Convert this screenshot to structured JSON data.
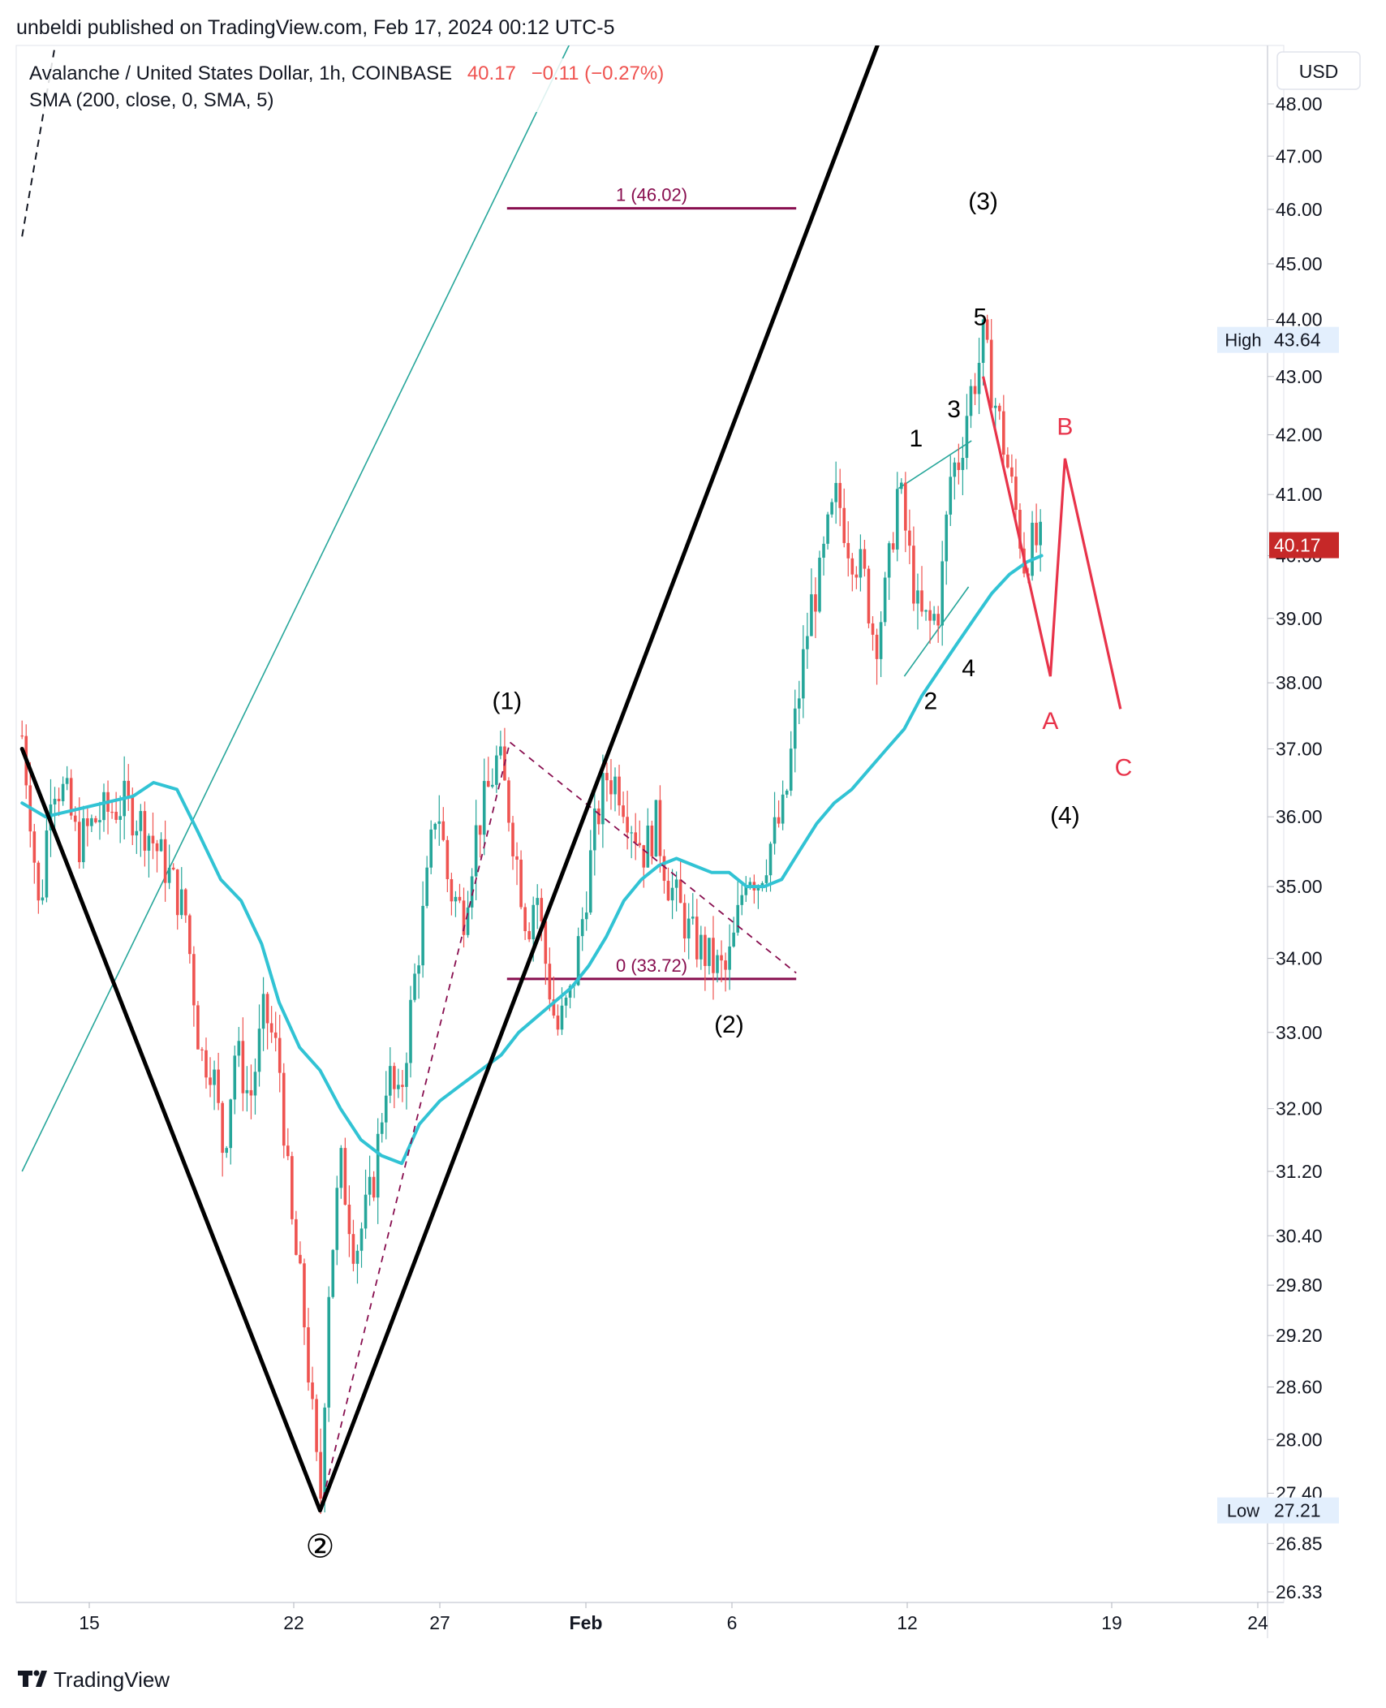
{
  "header": {
    "published_line": "unbeldi published on TradingView.com, Feb 17, 2024 00:12 UTC-5",
    "symbol_line": "Avalanche / United States Dollar, 1h, COINBASE",
    "price": "40.17",
    "change": "−0.11 (−0.27%)",
    "indicator_line": "SMA (200, close, 0, SMA, 5)"
  },
  "currency_button": "USD",
  "footer": {
    "brand": "TradingView"
  },
  "colors": {
    "up": "#26a69a",
    "down": "#ef5350",
    "sma": "#31c3d4",
    "wave_black": "#000000",
    "projection_red": "#e8334a",
    "fib": "#880e4f",
    "channel": "#26a69a",
    "price_label_bg": "#c62828",
    "axis_label_bg": "#e3effd"
  },
  "price_labels": {
    "high": {
      "title": "High",
      "value": "43.64"
    },
    "low": {
      "title": "Low",
      "value": "27.21"
    },
    "last": {
      "value": "40.17"
    }
  },
  "chart_data": {
    "type": "candlestick",
    "title": "Avalanche / United States Dollar, 1h, COINBASE",
    "scale": "log",
    "y_ticks": [
      "48.00",
      "47.00",
      "46.00",
      "45.00",
      "44.00",
      "43.00",
      "42.00",
      "41.00",
      "40.00",
      "39.00",
      "38.00",
      "37.00",
      "36.00",
      "35.00",
      "34.00",
      "33.00",
      "32.00",
      "31.20",
      "30.40",
      "29.80",
      "29.20",
      "28.60",
      "28.00",
      "27.40",
      "26.85",
      "26.33"
    ],
    "x_ticks": [
      {
        "label": "15",
        "day": 15,
        "bold": false
      },
      {
        "label": "22",
        "day": 22,
        "bold": false
      },
      {
        "label": "27",
        "day": 27,
        "bold": false
      },
      {
        "label": "Feb",
        "day": 32,
        "bold": true
      },
      {
        "label": "6",
        "day": 37,
        "bold": false
      },
      {
        "label": "12",
        "day": 43,
        "bold": false
      },
      {
        "label": "19",
        "day": 50,
        "bold": false
      },
      {
        "label": "24",
        "day": 55,
        "bold": false
      }
    ],
    "x_axis_unit": "day (Jan = 1–31, Feb = 32+)",
    "price_path": [
      [
        12.7,
        37.2
      ],
      [
        13.0,
        36.0
      ],
      [
        13.3,
        34.5
      ],
      [
        13.7,
        36.6
      ],
      [
        14.2,
        36.3
      ],
      [
        14.6,
        35.6
      ],
      [
        15.3,
        36.0
      ],
      [
        16.2,
        36.2
      ],
      [
        17.0,
        35.8
      ],
      [
        17.7,
        35.2
      ],
      [
        18.3,
        34.6
      ],
      [
        18.8,
        32.7
      ],
      [
        19.2,
        32.6
      ],
      [
        19.6,
        31.4
      ],
      [
        20.0,
        32.8
      ],
      [
        20.5,
        32.1
      ],
      [
        21.0,
        33.3
      ],
      [
        21.5,
        32.6
      ],
      [
        21.9,
        30.6
      ],
      [
        22.3,
        29.6
      ],
      [
        22.7,
        28.0
      ],
      [
        22.9,
        27.21
      ],
      [
        23.2,
        29.8
      ],
      [
        23.6,
        31.3
      ],
      [
        24.1,
        30.2
      ],
      [
        24.7,
        31.0
      ],
      [
        25.2,
        32.5
      ],
      [
        25.6,
        32.0
      ],
      [
        26.1,
        33.6
      ],
      [
        26.5,
        34.8
      ],
      [
        26.9,
        36.3
      ],
      [
        27.3,
        35.0
      ],
      [
        27.8,
        34.6
      ],
      [
        28.2,
        35.7
      ],
      [
        28.6,
        36.3
      ],
      [
        29.0,
        36.9
      ],
      [
        29.4,
        36.0
      ],
      [
        29.7,
        35.2
      ],
      [
        30.0,
        34.4
      ],
      [
        30.3,
        35.0
      ],
      [
        30.6,
        34.0
      ],
      [
        31.0,
        33.0
      ],
      [
        31.5,
        33.5
      ],
      [
        31.9,
        34.6
      ],
      [
        32.3,
        35.8
      ],
      [
        32.7,
        36.6
      ],
      [
        33.1,
        36.5
      ],
      [
        33.6,
        35.9
      ],
      [
        34.0,
        35.5
      ],
      [
        34.4,
        35.9
      ],
      [
        34.8,
        35.1
      ],
      [
        35.2,
        34.7
      ],
      [
        35.6,
        34.3
      ],
      [
        36.0,
        34.1
      ],
      [
        36.4,
        33.9
      ],
      [
        36.8,
        33.8
      ],
      [
        37.1,
        34.3
      ],
      [
        37.5,
        35.3
      ],
      [
        37.9,
        35.1
      ],
      [
        38.4,
        35.7
      ],
      [
        38.8,
        36.1
      ],
      [
        39.1,
        37.2
      ],
      [
        39.4,
        38.2
      ],
      [
        39.7,
        39.2
      ],
      [
        40.0,
        39.6
      ],
      [
        40.3,
        40.4
      ],
      [
        40.6,
        41.0
      ],
      [
        41.0,
        40.2
      ],
      [
        41.5,
        39.7
      ],
      [
        41.9,
        38.6
      ],
      [
        42.3,
        39.5
      ],
      [
        42.7,
        41.2
      ],
      [
        43.0,
        40.2
      ],
      [
        43.4,
        39.0
      ],
      [
        43.8,
        38.9
      ],
      [
        44.1,
        39.2
      ],
      [
        44.5,
        41.4
      ],
      [
        44.8,
        41.6
      ],
      [
        45.1,
        42.6
      ],
      [
        45.4,
        43.1
      ],
      [
        45.6,
        43.64
      ],
      [
        45.9,
        42.8
      ],
      [
        46.2,
        42.1
      ],
      [
        46.5,
        41.3
      ],
      [
        46.8,
        40.5
      ],
      [
        47.0,
        39.9
      ],
      [
        47.3,
        40.2
      ],
      [
        47.6,
        40.17
      ]
    ],
    "sma_200": [
      [
        12.7,
        36.2
      ],
      [
        13.5,
        36.0
      ],
      [
        14.5,
        36.1
      ],
      [
        15.5,
        36.2
      ],
      [
        16.5,
        36.3
      ],
      [
        17.2,
        36.5
      ],
      [
        18.0,
        36.4
      ],
      [
        18.7,
        35.8
      ],
      [
        19.5,
        35.1
      ],
      [
        20.2,
        34.8
      ],
      [
        20.9,
        34.2
      ],
      [
        21.5,
        33.4
      ],
      [
        22.2,
        32.8
      ],
      [
        22.9,
        32.5
      ],
      [
        23.6,
        32.0
      ],
      [
        24.3,
        31.6
      ],
      [
        25.0,
        31.4
      ],
      [
        25.7,
        31.3
      ],
      [
        26.3,
        31.8
      ],
      [
        27.0,
        32.1
      ],
      [
        27.7,
        32.3
      ],
      [
        28.4,
        32.5
      ],
      [
        29.1,
        32.7
      ],
      [
        29.7,
        33.0
      ],
      [
        30.3,
        33.2
      ],
      [
        30.9,
        33.4
      ],
      [
        31.5,
        33.6
      ],
      [
        32.1,
        33.9
      ],
      [
        32.7,
        34.3
      ],
      [
        33.3,
        34.8
      ],
      [
        33.9,
        35.1
      ],
      [
        34.5,
        35.3
      ],
      [
        35.1,
        35.4
      ],
      [
        35.7,
        35.3
      ],
      [
        36.3,
        35.2
      ],
      [
        36.9,
        35.2
      ],
      [
        37.5,
        35.0
      ],
      [
        38.1,
        35.0
      ],
      [
        38.7,
        35.1
      ],
      [
        39.3,
        35.5
      ],
      [
        39.9,
        35.9
      ],
      [
        40.5,
        36.2
      ],
      [
        41.1,
        36.4
      ],
      [
        41.7,
        36.7
      ],
      [
        42.3,
        37.0
      ],
      [
        42.9,
        37.3
      ],
      [
        43.5,
        37.8
      ],
      [
        44.1,
        38.2
      ],
      [
        44.7,
        38.6
      ],
      [
        45.3,
        39.0
      ],
      [
        45.9,
        39.4
      ],
      [
        46.5,
        39.7
      ],
      [
        47.1,
        39.9
      ],
      [
        47.6,
        40.0
      ]
    ],
    "wave_lines": [
      {
        "name": "wave-2-down",
        "points": [
          [
            12.7,
            37.0
          ],
          [
            22.9,
            27.21
          ]
        ]
      },
      {
        "name": "wave-3-up",
        "points": [
          [
            22.9,
            27.21
          ],
          [
            50.5,
            64.0
          ]
        ]
      }
    ],
    "wave_labels": [
      {
        "text": "②",
        "day": 22.9,
        "price": 26.7,
        "color": "#000000",
        "size": 40
      },
      {
        "text": "(1)",
        "day": 29.3,
        "price": 37.6,
        "color": "#000000",
        "size": 30
      },
      {
        "text": "(2)",
        "day": 36.9,
        "price": 33.0,
        "color": "#000000",
        "size": 30
      },
      {
        "text": "(3)",
        "day": 45.6,
        "price": 46.0,
        "color": "#000000",
        "size": 30
      },
      {
        "text": "(4)",
        "day": 48.4,
        "price": 35.9,
        "color": "#000000",
        "size": 30
      },
      {
        "text": "1",
        "day": 43.3,
        "price": 41.8,
        "color": "#000000",
        "size": 30
      },
      {
        "text": "2",
        "day": 43.8,
        "price": 37.6,
        "color": "#000000",
        "size": 30
      },
      {
        "text": "3",
        "day": 44.6,
        "price": 42.3,
        "color": "#000000",
        "size": 30
      },
      {
        "text": "4",
        "day": 45.1,
        "price": 38.1,
        "color": "#000000",
        "size": 30
      },
      {
        "text": "5",
        "day": 45.5,
        "price": 43.9,
        "color": "#000000",
        "size": 30
      },
      {
        "text": "A",
        "day": 47.9,
        "price": 37.3,
        "color": "#e8334a",
        "size": 30
      },
      {
        "text": "B",
        "day": 48.4,
        "price": 42.0,
        "color": "#e8334a",
        "size": 30
      },
      {
        "text": "C",
        "day": 50.4,
        "price": 36.6,
        "color": "#e8334a",
        "size": 30
      }
    ],
    "projection_abc": [
      [
        45.6,
        43.0
      ],
      [
        47.9,
        38.1
      ],
      [
        48.4,
        41.6
      ],
      [
        50.3,
        37.6
      ]
    ],
    "fib_retracement": {
      "levels": [
        {
          "label": "1 (46.02)",
          "price": 46.02
        },
        {
          "label": "0 (33.72)",
          "price": 33.72
        }
      ],
      "from_day": 29.3,
      "to_day": 39.2
    },
    "dashed_trend": [
      [
        [
          22.9,
          27.21
        ],
        [
          29.4,
          37.1
        ],
        [
          39.2,
          33.8
        ]
      ]
    ],
    "channel_lines": [
      {
        "points": [
          [
            12.7,
            31.2
          ],
          [
            42.3,
            64.0
          ]
        ]
      },
      {
        "points": [
          [
            12.7,
            45.5
          ],
          [
            17.7,
            64.0
          ]
        ],
        "dashed": true
      }
    ],
    "sub_wave_triangle": [
      {
        "points": [
          [
            42.7,
            41.1
          ],
          [
            45.2,
            41.9
          ]
        ]
      },
      {
        "points": [
          [
            42.9,
            38.1
          ],
          [
            45.1,
            39.5
          ]
        ]
      }
    ]
  }
}
